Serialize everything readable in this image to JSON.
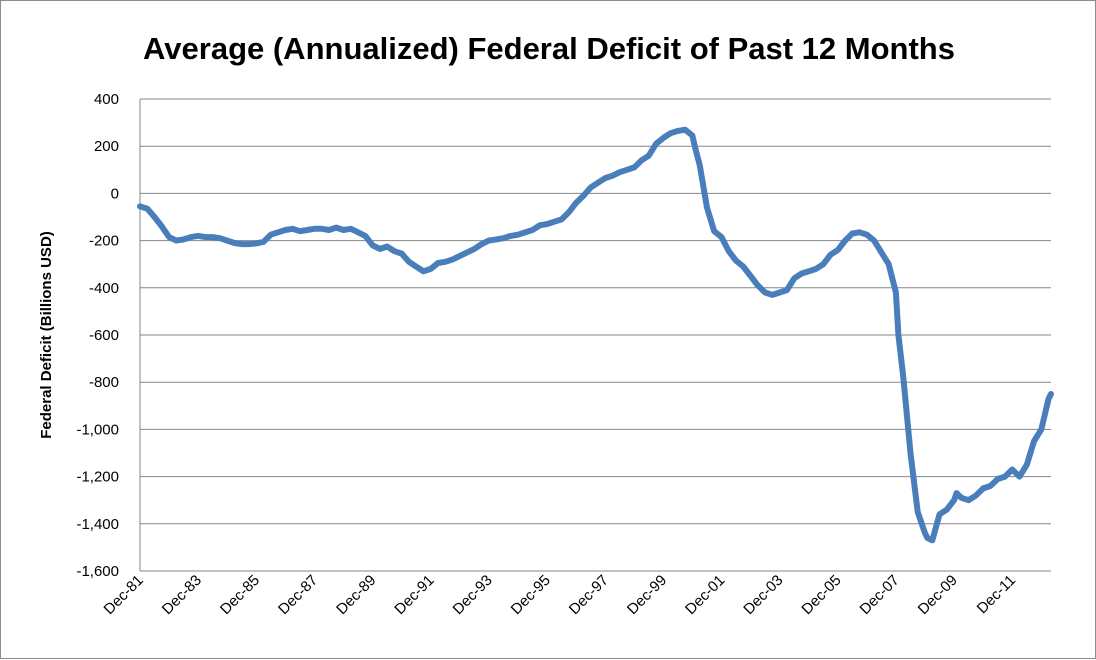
{
  "chart_data": {
    "type": "line",
    "title": "Average (Annualized) Federal Deficit of Past 12 Months",
    "xlabel": "",
    "ylabel": "Federal Deficit (Billions USD)",
    "ylim": [
      -1600,
      400
    ],
    "yticks": [
      400,
      200,
      0,
      -200,
      -400,
      -600,
      -800,
      -1000,
      -1200,
      -1400,
      -1600
    ],
    "ytick_labels": [
      "400",
      "200",
      "0",
      "-200",
      "-400",
      "-600",
      "-800",
      "-1,000",
      "-1,200",
      "-1,400",
      "-1,600"
    ],
    "xticks": [
      "Dec-81",
      "Dec-83",
      "Dec-85",
      "Dec-87",
      "Dec-89",
      "Dec-91",
      "Dec-93",
      "Dec-95",
      "Dec-97",
      "Dec-99",
      "Dec-01",
      "Dec-03",
      "Dec-05",
      "Dec-07",
      "Dec-09",
      "Dec-11"
    ],
    "xlim": [
      "1981-12",
      "2013-04"
    ],
    "grid": true,
    "legend": "none",
    "line_color": "#4a7ebb",
    "series": [
      {
        "x": [
          "1981-12",
          "1982-03",
          "1982-06",
          "1982-09",
          "1982-12",
          "1983-03",
          "1983-06",
          "1983-09",
          "1983-12",
          "1984-03",
          "1984-06",
          "1984-09",
          "1984-12",
          "1985-03",
          "1985-06",
          "1985-09",
          "1985-12",
          "1986-03",
          "1986-06",
          "1986-09",
          "1986-12",
          "1987-03",
          "1987-06",
          "1987-09",
          "1987-12",
          "1988-03",
          "1988-06",
          "1988-09",
          "1988-12",
          "1989-03",
          "1989-06",
          "1989-09",
          "1989-12",
          "1990-03",
          "1990-06",
          "1990-09",
          "1990-12",
          "1991-03",
          "1991-06",
          "1991-09",
          "1991-12",
          "1992-03",
          "1992-06",
          "1992-09",
          "1992-12",
          "1993-03",
          "1993-06",
          "1993-09",
          "1993-12",
          "1994-03",
          "1994-06",
          "1994-09",
          "1994-12",
          "1995-03",
          "1995-06",
          "1995-09",
          "1995-12",
          "1996-03",
          "1996-06",
          "1996-09",
          "1996-12",
          "1997-03",
          "1997-06",
          "1997-09",
          "1997-12",
          "1998-03",
          "1998-06",
          "1998-09",
          "1998-12",
          "1999-03",
          "1999-06",
          "1999-09",
          "1999-12",
          "2000-03",
          "2000-06",
          "2000-09",
          "2000-12",
          "2001-01",
          "2001-03",
          "2001-06",
          "2001-09",
          "2001-12",
          "2002-03",
          "2002-06",
          "2002-09",
          "2002-12",
          "2003-03",
          "2003-06",
          "2003-09",
          "2003-12",
          "2004-03",
          "2004-06",
          "2004-09",
          "2004-12",
          "2005-03",
          "2005-06",
          "2005-09",
          "2005-12",
          "2006-03",
          "2006-06",
          "2006-09",
          "2006-12",
          "2007-03",
          "2007-06",
          "2007-09",
          "2007-12",
          "2008-01",
          "2008-03",
          "2008-06",
          "2008-09",
          "2008-12",
          "2009-01",
          "2009-03",
          "2009-06",
          "2009-09",
          "2009-12",
          "2010-01",
          "2010-03",
          "2010-06",
          "2010-09",
          "2010-12",
          "2011-03",
          "2011-06",
          "2011-09",
          "2011-12",
          "2012-03",
          "2012-06",
          "2012-09",
          "2012-12",
          "2013-03",
          "2013-04"
        ],
        "values": [
          -55,
          -65,
          -100,
          -140,
          -185,
          -200,
          -195,
          -185,
          -180,
          -185,
          -185,
          -190,
          -200,
          -210,
          -215,
          -215,
          -212,
          -205,
          -175,
          -165,
          -155,
          -150,
          -160,
          -155,
          -150,
          -150,
          -155,
          -145,
          -155,
          -150,
          -165,
          -180,
          -220,
          -235,
          -225,
          -245,
          -255,
          -290,
          -310,
          -330,
          -320,
          -295,
          -290,
          -280,
          -265,
          -250,
          -235,
          -215,
          -200,
          -195,
          -190,
          -180,
          -175,
          -165,
          -155,
          -135,
          -130,
          -120,
          -110,
          -80,
          -40,
          -10,
          25,
          45,
          65,
          75,
          90,
          100,
          110,
          140,
          160,
          210,
          235,
          255,
          265,
          270,
          245,
          200,
          120,
          -60,
          -160,
          -185,
          -245,
          -285,
          -310,
          -350,
          -390,
          -420,
          -430,
          -420,
          -410,
          -360,
          -340,
          -330,
          -320,
          -300,
          -260,
          -240,
          -200,
          -170,
          -165,
          -175,
          -200,
          -250,
          -300,
          -420,
          -600,
          -775,
          -1100,
          -1350,
          -1440,
          -1460,
          -1470,
          -1360,
          -1340,
          -1300,
          -1270,
          -1290,
          -1300,
          -1280,
          -1250,
          -1240,
          -1210,
          -1200,
          -1170,
          -1200,
          -1150,
          -1050,
          -1000,
          -870,
          -850
        ]
      }
    ]
  }
}
